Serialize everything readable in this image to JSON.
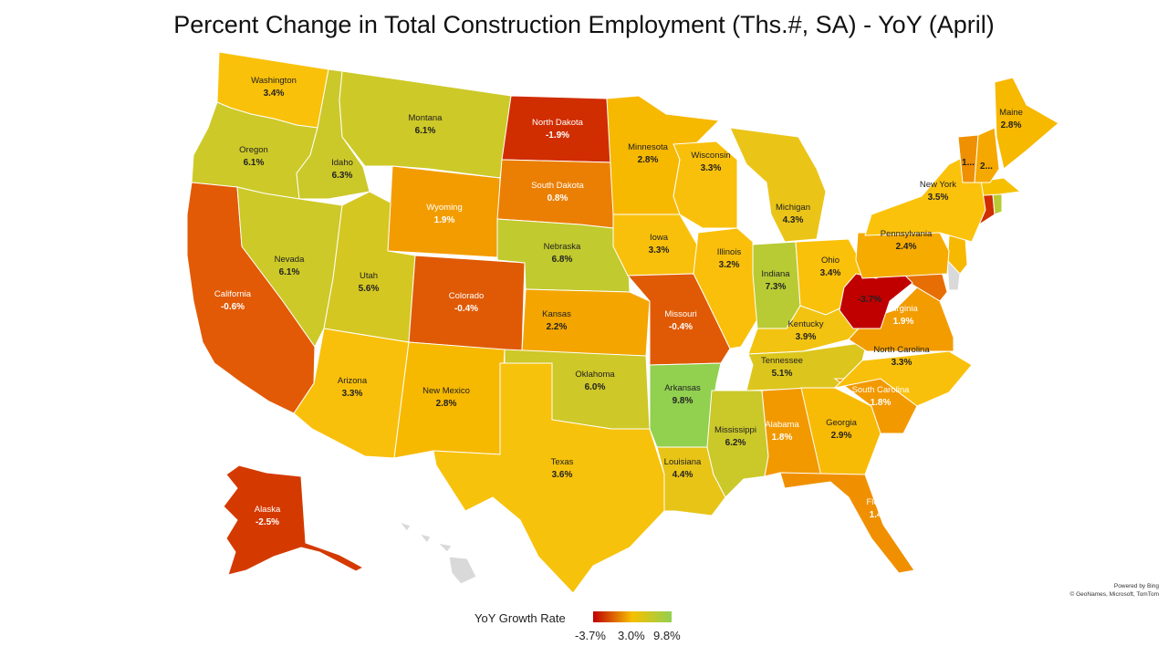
{
  "title": "Percent Change in Total Construction Employment (Ths.#, SA) - YoY (April)",
  "credit": {
    "line1": "Powered by Bing",
    "line2": "© GeoNames, Microsoft, TomTom"
  },
  "legend": {
    "title": "YoY Growth Rate",
    "min": "-3.7%",
    "mid": "3.0%",
    "max": "9.8%",
    "colors": {
      "low": "#c00000",
      "mid": "#f6c000",
      "high": "#92d050"
    }
  },
  "states": [
    {
      "id": "wa",
      "name": "Washington",
      "value": "3.4%",
      "color": "#fac10a"
    },
    {
      "id": "or",
      "name": "Oregon",
      "value": "6.1%",
      "color": "#cdc928"
    },
    {
      "id": "ca",
      "name": "California",
      "value": "-0.6%",
      "color": "#e25a05"
    },
    {
      "id": "id",
      "name": "Idaho",
      "value": "6.3%",
      "color": "#cbc82a"
    },
    {
      "id": "nv",
      "name": "Nevada",
      "value": "6.1%",
      "color": "#cdc928"
    },
    {
      "id": "mt",
      "name": "Montana",
      "value": "6.1%",
      "color": "#cdc928"
    },
    {
      "id": "wy",
      "name": "Wyoming",
      "value": "1.9%",
      "color": "#f39c00"
    },
    {
      "id": "ut",
      "name": "Utah",
      "value": "5.6%",
      "color": "#d5c721"
    },
    {
      "id": "az",
      "name": "Arizona",
      "value": "3.3%",
      "color": "#f9c00b"
    },
    {
      "id": "co",
      "name": "Colorado",
      "value": "-0.4%",
      "color": "#e05a06"
    },
    {
      "id": "nm",
      "name": "New Mexico",
      "value": "2.8%",
      "color": "#f7b800"
    },
    {
      "id": "nd",
      "name": "North Dakota",
      "value": "-1.9%",
      "color": "#d02d00"
    },
    {
      "id": "sd",
      "name": "South Dakota",
      "value": "0.8%",
      "color": "#eb7f03"
    },
    {
      "id": "ne",
      "name": "Nebraska",
      "value": "6.8%",
      "color": "#c1ca2e"
    },
    {
      "id": "ks",
      "name": "Kansas",
      "value": "2.2%",
      "color": "#f4a500"
    },
    {
      "id": "ok",
      "name": "Oklahoma",
      "value": "6.0%",
      "color": "#cec828"
    },
    {
      "id": "tx",
      "name": "Texas",
      "value": "3.6%",
      "color": "#f7c20c"
    },
    {
      "id": "mn",
      "name": "Minnesota",
      "value": "2.8%",
      "color": "#f7b800"
    },
    {
      "id": "ia",
      "name": "Iowa",
      "value": "3.3%",
      "color": "#f9c00b"
    },
    {
      "id": "mo",
      "name": "Missouri",
      "value": "-0.4%",
      "color": "#e05a06"
    },
    {
      "id": "ar",
      "name": "Arkansas",
      "value": "9.8%",
      "color": "#92d050"
    },
    {
      "id": "la",
      "name": "Louisiana",
      "value": "4.4%",
      "color": "#e8c417"
    },
    {
      "id": "wi",
      "name": "Wisconsin",
      "value": "3.3%",
      "color": "#f9c00b"
    },
    {
      "id": "il",
      "name": "Illinois",
      "value": "3.2%",
      "color": "#f9bf0a"
    },
    {
      "id": "mi",
      "name": "Michigan",
      "value": "4.3%",
      "color": "#ebc418"
    },
    {
      "id": "in",
      "name": "Indiana",
      "value": "7.3%",
      "color": "#b8cb34"
    },
    {
      "id": "oh",
      "name": "Ohio",
      "value": "3.4%",
      "color": "#fac10a"
    },
    {
      "id": "ky",
      "name": "Kentucky",
      "value": "3.9%",
      "color": "#f2c411"
    },
    {
      "id": "tn",
      "name": "Tennessee",
      "value": "5.1%",
      "color": "#dcc61d"
    },
    {
      "id": "ms",
      "name": "Mississippi",
      "value": "6.2%",
      "color": "#cbc82a"
    },
    {
      "id": "al",
      "name": "Alabama",
      "value": "1.8%",
      "color": "#f29900"
    },
    {
      "id": "ga",
      "name": "Georgia",
      "value": "2.9%",
      "color": "#f8bb05"
    },
    {
      "id": "fl",
      "name": "Florida",
      "value": "1.4%",
      "color": "#f09000"
    },
    {
      "id": "sc",
      "name": "South Carolina",
      "value": "1.8%",
      "color": "#f29900"
    },
    {
      "id": "nc",
      "name": "North Carolina",
      "value": "3.3%",
      "color": "#f9c00b"
    },
    {
      "id": "va",
      "name": "Virginia",
      "value": "1.9%",
      "color": "#f39c00"
    },
    {
      "id": "wv",
      "name": "",
      "value": "-3.7%",
      "color": "#c00000"
    },
    {
      "id": "pa",
      "name": "Pennsylvania",
      "value": "2.4%",
      "color": "#f6ab00"
    },
    {
      "id": "ny",
      "name": "New York",
      "value": "3.5%",
      "color": "#fbc20b"
    },
    {
      "id": "me",
      "name": "Maine",
      "value": "2.8%",
      "color": "#f7b800"
    },
    {
      "id": "vt",
      "name": "",
      "value": "1...",
      "color": "#ef8f02"
    },
    {
      "id": "nh",
      "name": "",
      "value": "2...",
      "color": "#f5a800"
    },
    {
      "id": "ak",
      "name": "Alaska",
      "value": "-2.5%",
      "color": "#d43a00"
    }
  ],
  "unlabeled_states": [
    {
      "id": "ct",
      "color": "#d02d00"
    },
    {
      "id": "ri",
      "color": "#b8cb34"
    },
    {
      "id": "ma",
      "color": "#f6c000"
    },
    {
      "id": "nj",
      "color": "#f7b800"
    },
    {
      "id": "md",
      "color": "#e66e04"
    },
    {
      "id": "de",
      "color": "#d9d9d9"
    },
    {
      "id": "hi",
      "color": "#d9d9d9"
    }
  ]
}
